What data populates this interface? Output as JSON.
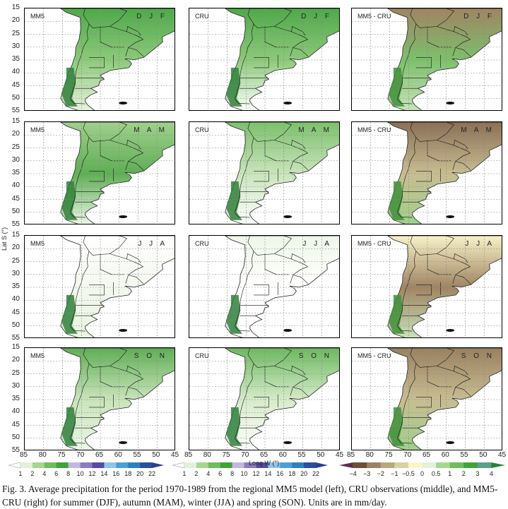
{
  "figure": {
    "columns": [
      {
        "label": "MM5",
        "type": "model"
      },
      {
        "label": "CRU",
        "type": "obs"
      },
      {
        "label": "MM5 - CRU",
        "type": "diff"
      }
    ],
    "seasons": [
      "D J F",
      "M A M",
      "J J A",
      "S O N"
    ],
    "lat_ticks": [
      "15",
      "20",
      "25",
      "30",
      "35",
      "40",
      "45",
      "50",
      "55"
    ],
    "lon_ticks": [
      "85",
      "80",
      "75",
      "70",
      "65",
      "60",
      "55",
      "50",
      "45"
    ],
    "lat_label": "Lat S (°)",
    "lon_label": "Long W (°)",
    "panel_colors": {
      "model": [
        [
          "#4fa84a",
          "#8dc97a",
          "#e8f3e0"
        ],
        [
          "#9fd08c",
          "#5fae55",
          "#eef6e8"
        ],
        [
          "#ffffff",
          "#f3f8ee",
          "#e8f3e0"
        ],
        [
          "#5fae55",
          "#c9e4bb",
          "#eef6e8"
        ]
      ],
      "obs": [
        [
          "#4fa84a",
          "#8dc97a",
          "#ffffff"
        ],
        [
          "#7cc06c",
          "#c9e4bb",
          "#ffffff"
        ],
        [
          "#eef6e8",
          "#ffffff",
          "#ffffff"
        ],
        [
          "#6db860",
          "#d6ebca",
          "#ffffff"
        ]
      ],
      "diff": [
        [
          "#a08462",
          "#7cc06c",
          "#c9e4bb"
        ],
        [
          "#8a6f55",
          "#c8bd92",
          "#9fd08c"
        ],
        [
          "#f7f2c8",
          "#a08462",
          "#c9e4bb"
        ],
        [
          "#9a8060",
          "#c8bd92",
          "#9fd08c"
        ]
      ]
    }
  },
  "colorbars": [
    {
      "name": "precip-colorbar-mm5",
      "colors": [
        "#ffffff",
        "#e3f1da",
        "#a8d591",
        "#6fbd5c",
        "#3fa33a",
        "#c5b8de",
        "#8c7cc0",
        "#5a4aa0",
        "#8fc5e8",
        "#4a9fd6",
        "#2f7fc0",
        "#2a4f9e",
        "#2a3f8e"
      ],
      "labels": [
        "1",
        "2",
        "4",
        "6",
        "8",
        "10",
        "12",
        "14",
        "16",
        "18",
        "20",
        "22"
      ]
    },
    {
      "name": "precip-colorbar-cru",
      "colors": [
        "#ffffff",
        "#e3f1da",
        "#a8d591",
        "#6fbd5c",
        "#3fa33a",
        "#c5b8de",
        "#8c7cc0",
        "#5a4aa0",
        "#8fc5e8",
        "#4a9fd6",
        "#2f7fc0",
        "#2a4f9e",
        "#2a3f8e"
      ],
      "labels": [
        "1",
        "2",
        "4",
        "6",
        "8",
        "10",
        "12",
        "14",
        "16",
        "18",
        "20",
        "22"
      ]
    },
    {
      "name": "diff-colorbar",
      "colors": [
        "#5a2f4a",
        "#6e4f36",
        "#9a8266",
        "#b9a77f",
        "#d6d2a2",
        "#faf6cc",
        "#e3f1da",
        "#a8d591",
        "#6fbd5c",
        "#3fa33a",
        "#5f9e8a",
        "#2f7f3a"
      ],
      "labels": [
        "−4",
        "−3",
        "−2",
        "−1",
        "−0.5",
        "0",
        "0.5",
        "1",
        "2",
        "3",
        "4"
      ]
    }
  ],
  "caption": "Fig. 3. Average precipitation for the period 1970-1989 from the regional MM5 model (left), CRU observations (middle), and MM5-CRU (right) for summer (DJF), autumn (MAM), winter (JJA) and spring (SON). Units are in mm/day."
}
